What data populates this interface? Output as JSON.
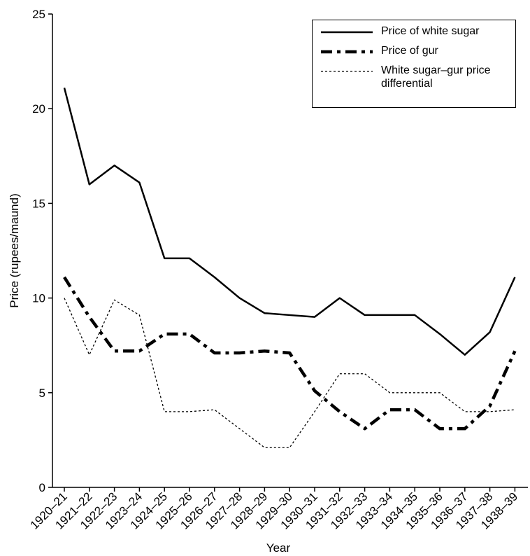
{
  "chart_data": {
    "type": "line",
    "xlabel": "Year",
    "ylabel": "Price (rupees/maund)",
    "categories": [
      "1920–21",
      "1921–22",
      "1922–23",
      "1923–24",
      "1924–25",
      "1925–26",
      "1926–27",
      "1927–28",
      "1928–29",
      "1929–30",
      "1930–31",
      "1931–32",
      "1932–33",
      "1933–34",
      "1934–35",
      "1935–36",
      "1936–37",
      "1937–38",
      "1938–39"
    ],
    "series": [
      {
        "name": "Price of white sugar",
        "color": "#000000",
        "values": [
          21.1,
          16,
          17,
          16.1,
          12.1,
          12.1,
          11.1,
          10,
          9.2,
          9.1,
          9,
          10,
          9.1,
          9.1,
          9.1,
          8.1,
          7,
          8.2,
          11.1
        ]
      },
      {
        "name": "Price of gur",
        "color": "#000000",
        "values": [
          11.1,
          9,
          7.2,
          7.2,
          8.1,
          8.1,
          7.1,
          7.1,
          7.2,
          7.1,
          5.1,
          4,
          3.1,
          4.1,
          4.1,
          3.1,
          3.1,
          4.3,
          7.2
        ]
      },
      {
        "name": "White sugar–gur price differential",
        "color": "#000000",
        "values": [
          10,
          7,
          9.9,
          9.1,
          4,
          4,
          4.1,
          3.1,
          2.1,
          2.1,
          4,
          6,
          6,
          5,
          5,
          5,
          4,
          4,
          4.1
        ]
      }
    ],
    "ylim": [
      0,
      25
    ],
    "yticks": [
      0,
      5,
      10,
      15,
      20,
      25
    ],
    "grid": false,
    "legend": "upper right"
  }
}
